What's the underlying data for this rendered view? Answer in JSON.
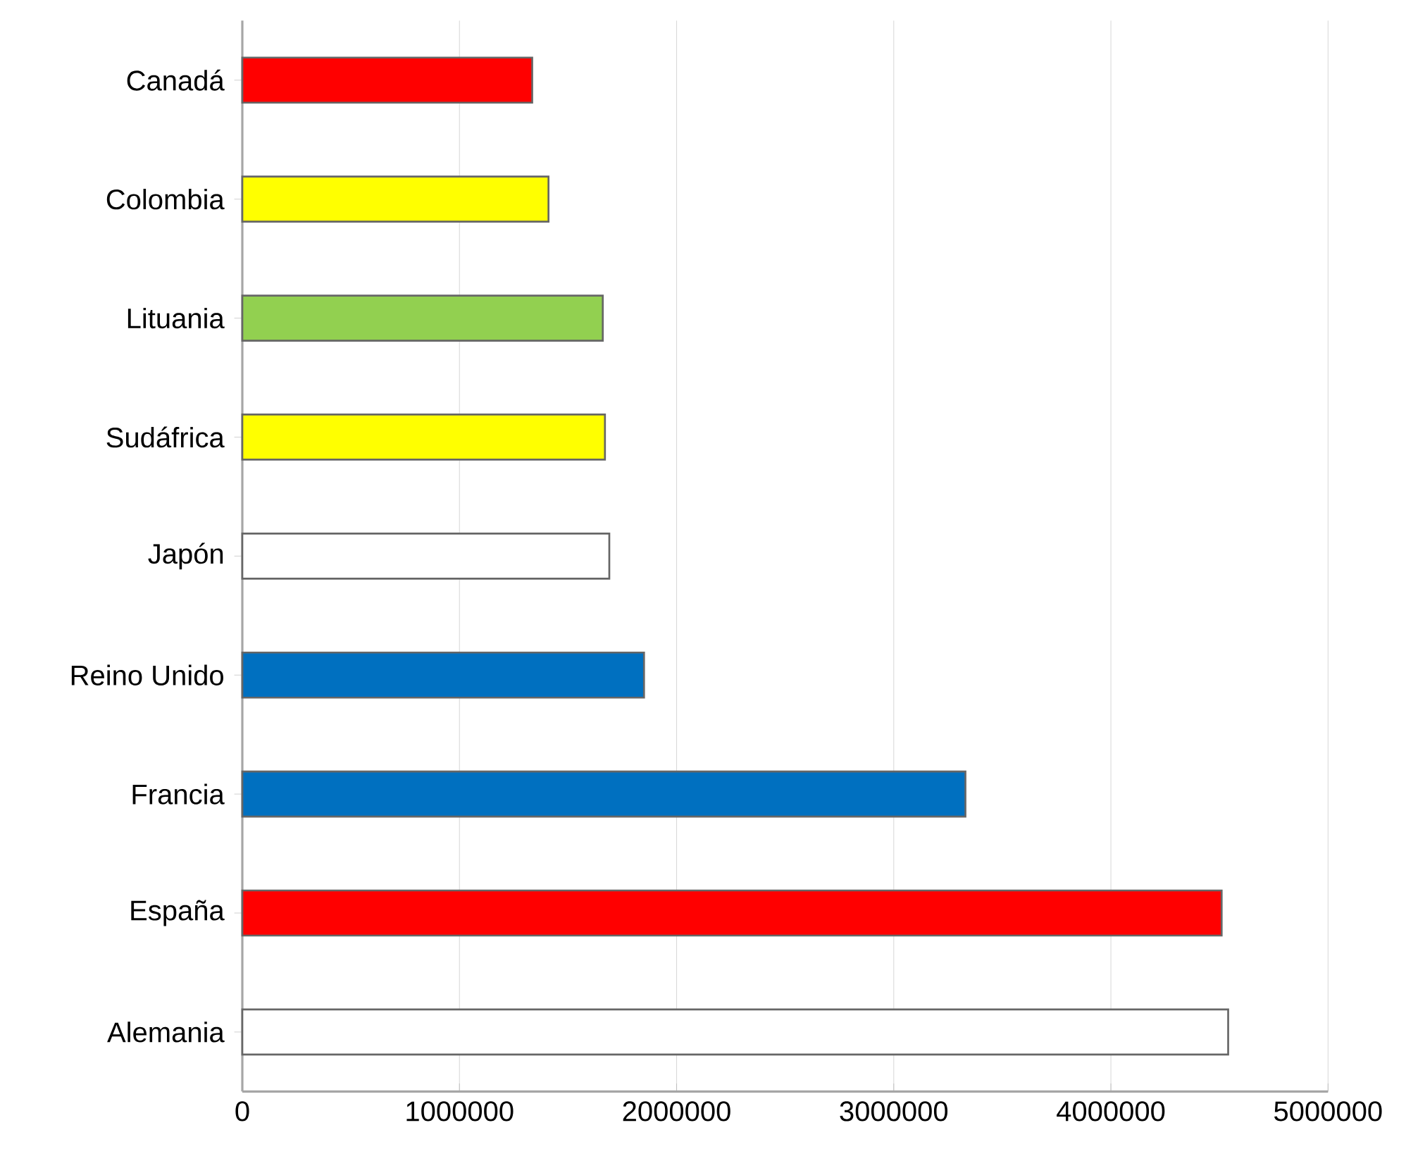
{
  "chart_data": {
    "type": "bar",
    "orientation": "horizontal",
    "categories": [
      "Canadá",
      "Colombia",
      "Lituania",
      "Sudáfrica",
      "Japón",
      "Reino Unido",
      "Francia",
      "España",
      "Alemania"
    ],
    "values": [
      1335000,
      1410000,
      1660000,
      1670000,
      1690000,
      1850000,
      3330000,
      4510000,
      4540000
    ],
    "colors": [
      "#ff0000",
      "#ffff00",
      "#92d050",
      "#ffff00",
      "#ffffff",
      "#0070c0",
      "#0070c0",
      "#ff0000",
      "#ffffff"
    ],
    "xlim": [
      0,
      5000000
    ],
    "xticks": [
      0,
      1000000,
      2000000,
      3000000,
      4000000,
      5000000
    ],
    "grid": "x"
  }
}
